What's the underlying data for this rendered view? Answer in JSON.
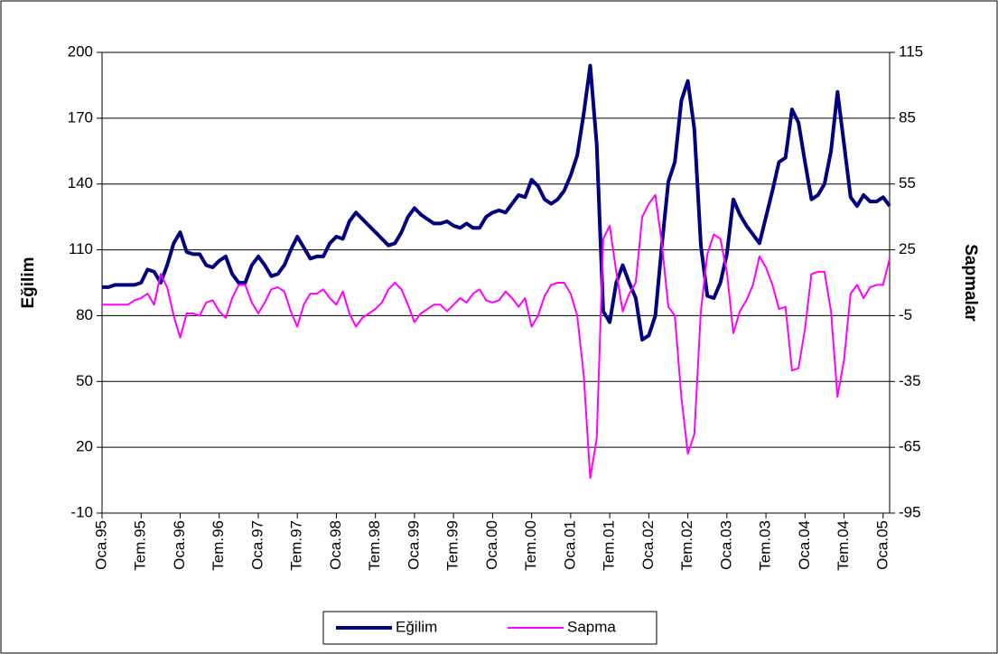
{
  "chart_data": {
    "type": "line",
    "y_label": "Eğilim",
    "y2_label": "Sapmalar",
    "categories": [
      "Oca.95",
      null,
      null,
      null,
      null,
      null,
      "Tem.95",
      null,
      null,
      null,
      null,
      null,
      "Oca.96",
      null,
      null,
      null,
      null,
      null,
      "Tem.96",
      null,
      null,
      null,
      null,
      null,
      "Oca.97",
      null,
      null,
      null,
      null,
      null,
      "Tem.97",
      null,
      null,
      null,
      null,
      null,
      "Oca.98",
      null,
      null,
      null,
      null,
      null,
      "Tem.98",
      null,
      null,
      null,
      null,
      null,
      "Oca.99",
      null,
      null,
      null,
      null,
      null,
      "Tem.99",
      null,
      null,
      null,
      null,
      null,
      "Oca.00",
      null,
      null,
      null,
      null,
      null,
      "Tem.00",
      null,
      null,
      null,
      null,
      null,
      "Oca.01",
      null,
      null,
      null,
      null,
      null,
      "Tem.01",
      null,
      null,
      null,
      null,
      null,
      "Oca.02",
      null,
      null,
      null,
      null,
      null,
      "Tem.02",
      null,
      null,
      null,
      null,
      null,
      "Oca.03",
      null,
      null,
      null,
      null,
      null,
      "Tem.03",
      null,
      null,
      null,
      null,
      null,
      "Oca.04",
      null,
      null,
      null,
      null,
      null,
      "Tem.04",
      null,
      null,
      null,
      null,
      null,
      "Oca.05",
      null
    ],
    "series": [
      {
        "name": "Eğilim",
        "color": "#000080",
        "axis": "y",
        "values": [
          93,
          93,
          94,
          94,
          94,
          94,
          95,
          101,
          100,
          95,
          103,
          113,
          118,
          109,
          108,
          108,
          103,
          102,
          105,
          107,
          99,
          95,
          95,
          103,
          107,
          103,
          98,
          99,
          103,
          110,
          116,
          111,
          106,
          107,
          107,
          113,
          116,
          115,
          123,
          127,
          124,
          121,
          118,
          115,
          112,
          113,
          118,
          125,
          129,
          126,
          124,
          122,
          122,
          123,
          121,
          120,
          122,
          120,
          120,
          125,
          127,
          128,
          127,
          131,
          135,
          134,
          142,
          139,
          133,
          131,
          133,
          137,
          144,
          153,
          172,
          194,
          158,
          82,
          77,
          95,
          103,
          95,
          88,
          69,
          71,
          80,
          112,
          141,
          150,
          178,
          187,
          165,
          112,
          89,
          88,
          95,
          108,
          133,
          126,
          121,
          117,
          113,
          125,
          137,
          150,
          152,
          174,
          168,
          150,
          133,
          135,
          140,
          155,
          182,
          158,
          134,
          130,
          135,
          132,
          132,
          134,
          130
        ]
      },
      {
        "name": "Sapma",
        "color": "#ff00ff",
        "axis": "y2",
        "values": [
          0,
          0,
          0,
          0,
          0,
          2,
          3,
          5,
          0,
          14,
          8,
          -5,
          -15,
          -4,
          -4,
          -5,
          1,
          2,
          -3,
          -6,
          3,
          9,
          9,
          1,
          -4,
          1,
          7,
          8,
          6,
          -3,
          -10,
          0,
          5,
          5,
          7,
          3,
          0,
          6,
          -4,
          -10,
          -6,
          -4,
          -2,
          1,
          7,
          10,
          7,
          0,
          -8,
          -4,
          -2,
          0,
          0,
          -3,
          0,
          3,
          1,
          5,
          7,
          2,
          1,
          2,
          6,
          3,
          -1,
          3,
          -10,
          -5,
          4,
          9,
          10,
          10,
          5,
          -5,
          -32,
          -79,
          -61,
          30,
          36,
          15,
          -3,
          5,
          10,
          40,
          46,
          50,
          28,
          -1,
          -5,
          -42,
          -68,
          -59,
          -3,
          23,
          32,
          30,
          15,
          -13,
          -3,
          2,
          9,
          22,
          17,
          9,
          -2,
          -1,
          -30,
          -29,
          -11,
          14,
          15,
          15,
          -3,
          -42,
          -25,
          5,
          9,
          3,
          8,
          9,
          9,
          21
        ]
      }
    ],
    "ylim": [
      -10,
      200
    ],
    "yticks": [
      -10,
      20,
      50,
      80,
      110,
      140,
      170,
      200
    ],
    "y2lim": [
      -95,
      115
    ],
    "y2ticks": [
      -95,
      -65,
      -35,
      -5,
      25,
      55,
      85,
      115
    ],
    "grid": true,
    "legend": "bottom"
  }
}
